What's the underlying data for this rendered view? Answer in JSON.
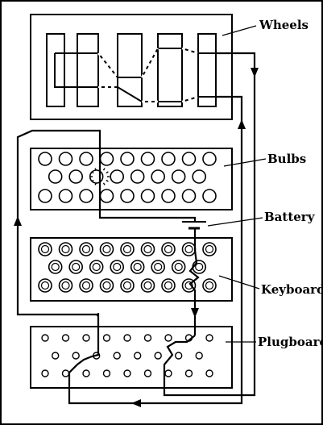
{
  "labels": {
    "wheels": "Wheels",
    "bulbs": "Bulbs",
    "battery": "Battery",
    "keyboard": "Keyboard",
    "plugboard": "Plugboard"
  }
}
